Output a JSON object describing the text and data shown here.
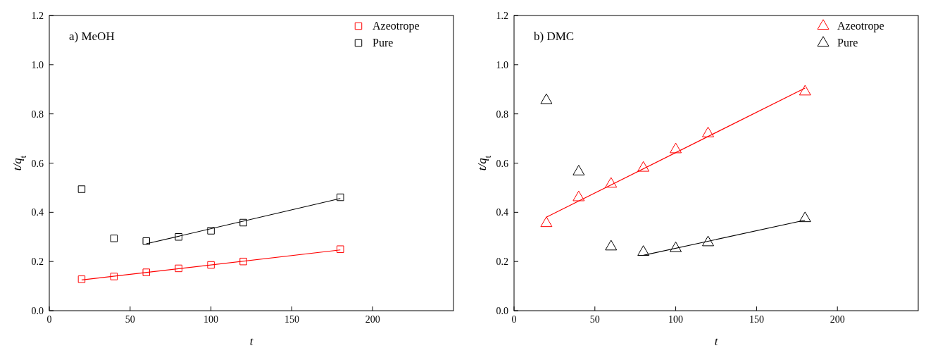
{
  "chart_data": [
    {
      "type": "scatter",
      "annotations": [
        "a) MeOH"
      ],
      "xlabel": "t",
      "ylabel": "t/q$_{t}$",
      "xlim": [
        0,
        250
      ],
      "xticks": [
        0,
        50,
        100,
        150,
        200
      ],
      "ylim": [
        0,
        1.2
      ],
      "yticks": [
        {
          "value": 0,
          "label": "0.0"
        },
        {
          "value": 0.2,
          "label": "0.2"
        },
        {
          "value": 0.4,
          "label": "0.4"
        },
        {
          "value": 0.6,
          "label": "0.6"
        },
        {
          "value": 0.8,
          "label": "0.8"
        },
        {
          "value": 1,
          "label": "1.0"
        },
        {
          "value": 1.2,
          "label": "1.2"
        }
      ],
      "legend": "top right",
      "grid": false,
      "series": [
        {
          "name": "Azeotrope",
          "color": "#ff0000",
          "marker": "square",
          "x": [
            20,
            40,
            60,
            80,
            100,
            120,
            180
          ],
          "values": [
            0.128,
            0.139,
            0.156,
            0.172,
            0.186,
            0.2,
            0.25
          ]
        },
        {
          "name": "Pure",
          "color": "#000000",
          "marker": "square",
          "x": [
            20,
            40,
            60,
            80,
            100,
            120,
            180
          ],
          "values": [
            0.494,
            0.294,
            0.283,
            0.3,
            0.325,
            0.358,
            0.461
          ]
        },
        {
          "type": "line",
          "color": "#ff0000",
          "marker": "none",
          "x": [
            20,
            180
          ],
          "values": [
            0.125,
            0.247
          ]
        },
        {
          "type": "line",
          "color": "#000000",
          "marker": "none",
          "x": [
            60,
            180
          ],
          "values": [
            0.272,
            0.456
          ]
        }
      ]
    },
    {
      "type": "scatter",
      "annotations": [
        "b) DMC"
      ],
      "xlabel": "t",
      "ylabel": "t/q$_{t}$",
      "xlim": [
        0,
        250
      ],
      "xticks": [
        0,
        50,
        100,
        150,
        200
      ],
      "ylim": [
        0,
        1.2
      ],
      "yticks": [
        {
          "value": 0,
          "label": "0.0"
        },
        {
          "value": 0.2,
          "label": "0.2"
        },
        {
          "value": 0.4,
          "label": "0.4"
        },
        {
          "value": 0.6,
          "label": "0.6"
        },
        {
          "value": 0.8,
          "label": "0.8"
        },
        {
          "value": 1,
          "label": "1.0"
        },
        {
          "value": 1.2,
          "label": "1.2"
        }
      ],
      "legend": "top right",
      "grid": false,
      "series": [
        {
          "name": "Azeotrope",
          "color": "#ff0000",
          "marker": "triangle",
          "x": [
            20,
            40,
            60,
            80,
            100,
            120,
            180
          ],
          "values": [
            0.355,
            0.46,
            0.515,
            0.58,
            0.655,
            0.72,
            0.89
          ]
        },
        {
          "name": "Pure",
          "color": "#000000",
          "marker": "triangle",
          "x": [
            20,
            40,
            60,
            80,
            100,
            120,
            180
          ],
          "values": [
            0.855,
            0.565,
            0.26,
            0.238,
            0.253,
            0.277,
            0.375
          ]
        },
        {
          "type": "line",
          "color": "#ff0000",
          "marker": "none",
          "x": [
            20,
            180
          ],
          "values": [
            0.38,
            0.905
          ]
        },
        {
          "type": "line",
          "color": "#000000",
          "marker": "none",
          "x": [
            80,
            180
          ],
          "values": [
            0.225,
            0.368
          ]
        }
      ]
    }
  ]
}
